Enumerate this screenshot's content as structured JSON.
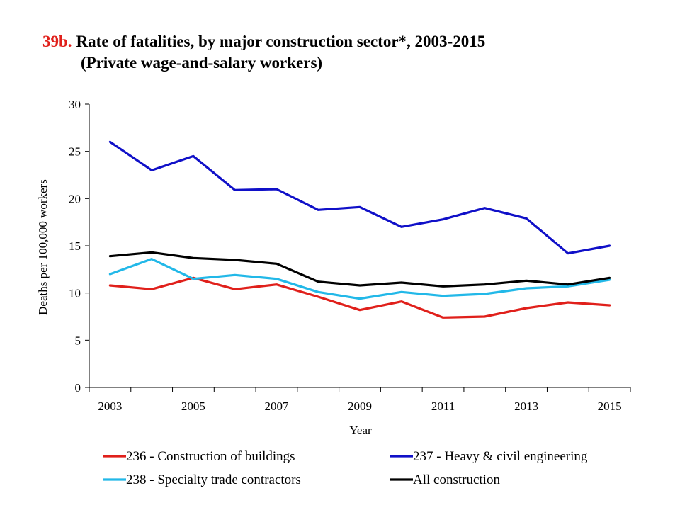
{
  "title_number": "39b.",
  "title_line1": "Rate of fatalities, by major construction sector*, 2003-2015",
  "title_line2": "(Private wage-and-salary workers)",
  "chart_data": {
    "type": "line",
    "xlabel": "Year",
    "ylabel": "Deaths per 100,000 workers",
    "x": [
      2003,
      2004,
      2005,
      2006,
      2007,
      2008,
      2009,
      2010,
      2011,
      2012,
      2013,
      2014,
      2015
    ],
    "x_tick_labels": [
      "2003",
      "2005",
      "2007",
      "2009",
      "2011",
      "2013",
      "2015"
    ],
    "y_ticks": [
      0,
      5,
      10,
      15,
      20,
      25,
      30
    ],
    "ylim": [
      0,
      30
    ],
    "grid": false,
    "legend_position": "bottom",
    "series": [
      {
        "name": "236 - Construction of buildings",
        "color": "#e0201b",
        "values": [
          10.8,
          10.4,
          11.6,
          10.4,
          10.9,
          9.6,
          8.2,
          9.1,
          7.4,
          7.5,
          8.4,
          9.0,
          8.7
        ]
      },
      {
        "name": "237 - Heavy & civil engineering",
        "color": "#1010c8",
        "values": [
          26.0,
          23.0,
          24.5,
          20.9,
          21.0,
          18.8,
          19.1,
          17.0,
          17.8,
          19.0,
          17.9,
          14.2,
          15.0
        ]
      },
      {
        "name": "238 - Specialty trade contractors",
        "color": "#22b8e8",
        "values": [
          12.0,
          13.6,
          11.5,
          11.9,
          11.5,
          10.1,
          9.4,
          10.1,
          9.7,
          9.9,
          10.5,
          10.7,
          11.4
        ]
      },
      {
        "name": "All construction",
        "color": "#000000",
        "values": [
          13.9,
          14.3,
          13.7,
          13.5,
          13.1,
          11.2,
          10.8,
          11.1,
          10.7,
          10.9,
          11.3,
          10.9,
          11.6
        ]
      }
    ]
  }
}
